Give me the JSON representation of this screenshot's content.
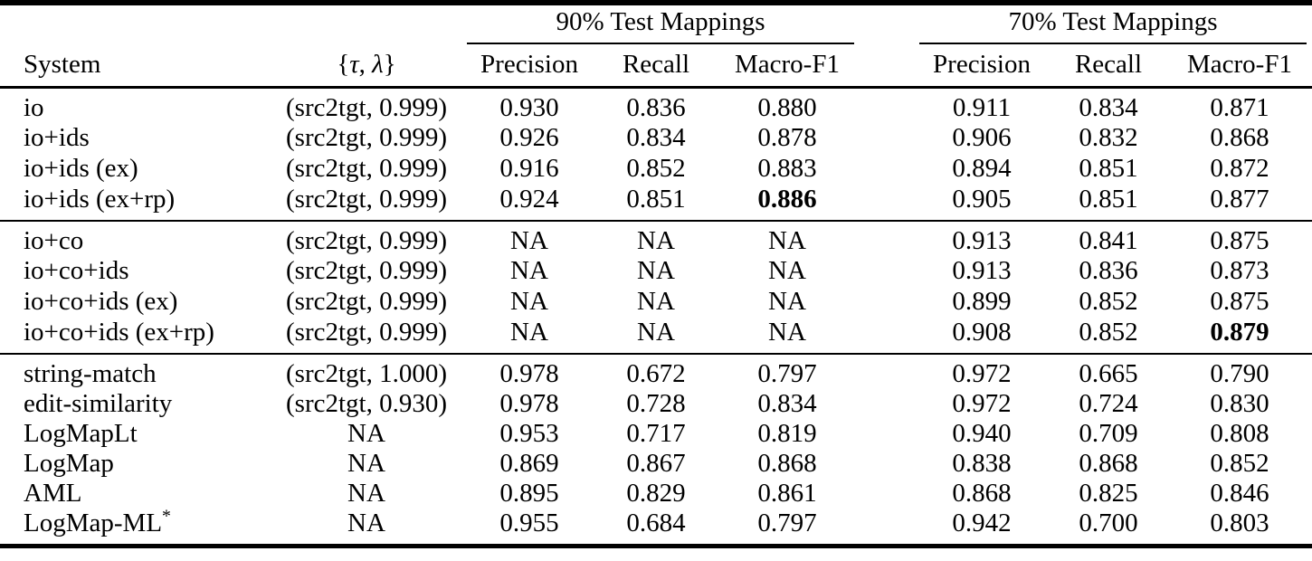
{
  "colors": {
    "background": "#ffffff",
    "text": "#000000",
    "rule": "#000000"
  },
  "table": {
    "col_headers": {
      "system": "System",
      "params": {
        "open_brace": "{",
        "tau": "τ",
        "separator": ", ",
        "lambda": "λ",
        "close_brace": "}"
      },
      "group_90_title": "90% Test Mappings",
      "group_70_title": "70% Test Mappings",
      "metrics": [
        "Precision",
        "Recall",
        "Macro-F1"
      ]
    },
    "sections": [
      {
        "rows": [
          {
            "system": "io",
            "params": "(src2tgt, 0.999)",
            "g90": [
              "0.930",
              "0.836",
              "0.880"
            ],
            "g70": [
              "0.911",
              "0.834",
              "0.871"
            ]
          },
          {
            "system": "io+ids",
            "params": "(src2tgt, 0.999)",
            "g90": [
              "0.926",
              "0.834",
              "0.878"
            ],
            "g70": [
              "0.906",
              "0.832",
              "0.868"
            ]
          },
          {
            "system": "io+ids (ex)",
            "params": "(src2tgt, 0.999)",
            "g90": [
              "0.916",
              "0.852",
              "0.883"
            ],
            "g70": [
              "0.894",
              "0.851",
              "0.872"
            ]
          },
          {
            "system": "io+ids (ex+rp)",
            "params": "(src2tgt, 0.999)",
            "g90": [
              "0.924",
              "0.851",
              "0.886"
            ],
            "g70": [
              "0.905",
              "0.851",
              "0.877"
            ],
            "bold_g90": [
              2
            ]
          }
        ]
      },
      {
        "rows": [
          {
            "system": "io+co",
            "params": "(src2tgt, 0.999)",
            "g90": [
              "NA",
              "NA",
              "NA"
            ],
            "g70": [
              "0.913",
              "0.841",
              "0.875"
            ]
          },
          {
            "system": "io+co+ids",
            "params": "(src2tgt, 0.999)",
            "g90": [
              "NA",
              "NA",
              "NA"
            ],
            "g70": [
              "0.913",
              "0.836",
              "0.873"
            ]
          },
          {
            "system": "io+co+ids (ex)",
            "params": "(src2tgt, 0.999)",
            "g90": [
              "NA",
              "NA",
              "NA"
            ],
            "g70": [
              "0.899",
              "0.852",
              "0.875"
            ]
          },
          {
            "system": "io+co+ids (ex+rp)",
            "params": "(src2tgt, 0.999)",
            "g90": [
              "NA",
              "NA",
              "NA"
            ],
            "g70": [
              "0.908",
              "0.852",
              "0.879"
            ],
            "bold_g70": [
              2
            ]
          }
        ]
      },
      {
        "rows": [
          {
            "system": "string-match",
            "params": "(src2tgt, 1.000)",
            "g90": [
              "0.978",
              "0.672",
              "0.797"
            ],
            "g70": [
              "0.972",
              "0.665",
              "0.790"
            ]
          },
          {
            "system": "edit-similarity",
            "params": "(src2tgt, 0.930)",
            "g90": [
              "0.978",
              "0.728",
              "0.834"
            ],
            "g70": [
              "0.972",
              "0.724",
              "0.830"
            ]
          },
          {
            "system": "LogMapLt",
            "params": "NA",
            "g90": [
              "0.953",
              "0.717",
              "0.819"
            ],
            "g70": [
              "0.940",
              "0.709",
              "0.808"
            ]
          },
          {
            "system": "LogMap",
            "params": "NA",
            "g90": [
              "0.869",
              "0.867",
              "0.868"
            ],
            "g70": [
              "0.838",
              "0.868",
              "0.852"
            ]
          },
          {
            "system": "AML",
            "params": "NA",
            "g90": [
              "0.895",
              "0.829",
              "0.861"
            ],
            "g70": [
              "0.868",
              "0.825",
              "0.846"
            ]
          },
          {
            "system": "LogMap-ML",
            "params": "NA",
            "g90": [
              "0.955",
              "0.684",
              "0.797"
            ],
            "g70": [
              "0.942",
              "0.700",
              "0.803"
            ],
            "system_superscript": "*"
          }
        ]
      }
    ]
  }
}
